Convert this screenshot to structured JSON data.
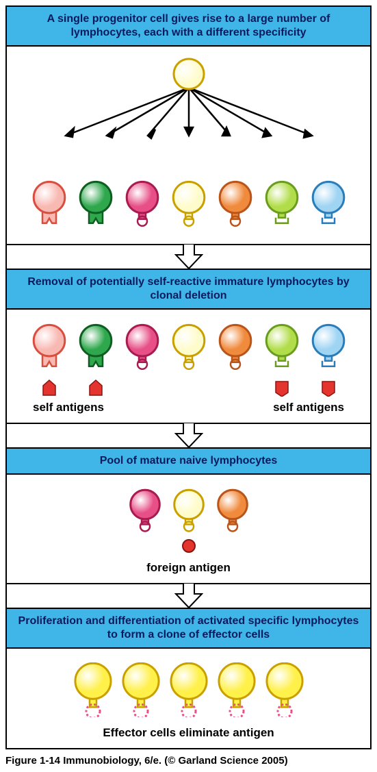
{
  "figure": {
    "caption": "Figure 1-14 Immunobiology, 6/e. (© Garland Science 2005)"
  },
  "colors": {
    "header_bg": "#3fb5e8",
    "header_text": "#0a1a5e",
    "stroke": "#000000",
    "arrow_fill": "#ffffff"
  },
  "panels": [
    {
      "title": "A single progenitor cell gives rise to a large number of lymphocytes, each with a different specificity",
      "progenitor": {
        "fill": "#fffccc",
        "stroke": "#caa000",
        "size": 48
      },
      "lymphocytes": [
        {
          "fill": "#f9b9b3",
          "stroke": "#d94f3f",
          "receptor": "notch"
        },
        {
          "fill": "#2fa84d",
          "stroke": "#0e5e22",
          "receptor": "notch"
        },
        {
          "fill": "#e74f86",
          "stroke": "#a71b50",
          "receptor": "round"
        },
        {
          "fill": "#fffccc",
          "stroke": "#caa000",
          "receptor": "round"
        },
        {
          "fill": "#f08a3c",
          "stroke": "#b9551a",
          "receptor": "round"
        },
        {
          "fill": "#b2dd4a",
          "stroke": "#6a9d1f",
          "receptor": "square"
        },
        {
          "fill": "#9fd4f3",
          "stroke": "#2a7db9",
          "receptor": "square"
        }
      ]
    },
    {
      "title": "Removal of potentially self-reactive immature lymphocytes by clonal deletion",
      "lymphocytes_ref": 0,
      "markers": [
        true,
        true,
        false,
        false,
        false,
        true,
        true
      ],
      "marker_shapes": [
        "house",
        "house",
        null,
        null,
        null,
        "shield",
        "shield"
      ],
      "marker_color": "#e3342e",
      "label_left": "self antigens",
      "label_right": "self antigens"
    },
    {
      "title": "Pool of mature naive lymphocytes",
      "lymphocytes": [
        {
          "fill": "#e74f86",
          "stroke": "#a71b50",
          "receptor": "round"
        },
        {
          "fill": "#fffccc",
          "stroke": "#caa000",
          "receptor": "round"
        },
        {
          "fill": "#f08a3c",
          "stroke": "#b9551a",
          "receptor": "round"
        }
      ],
      "antigen_color": "#e3342e",
      "center_label": "foreign antigen"
    },
    {
      "title": "Proliferation and differentiation of activated specific lymphocytes to form a clone of effector cells",
      "effector": {
        "fill": "#fff04a",
        "stroke": "#caa000",
        "size": 62,
        "antigen_stroke": "#e74f86"
      },
      "count": 5,
      "bottom_label": "Effector cells eliminate antigen"
    }
  ]
}
